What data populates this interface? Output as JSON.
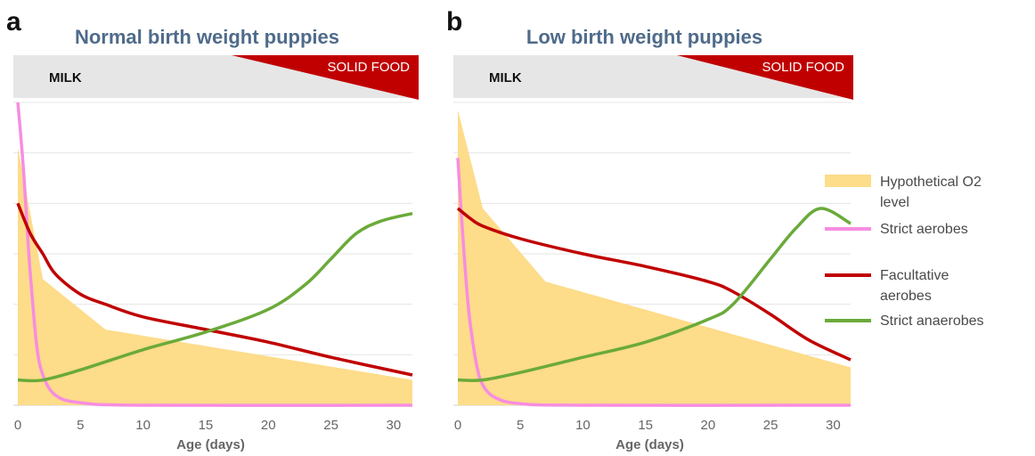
{
  "chart_data": [
    {
      "type": "line",
      "panel_label": "a",
      "title": "Normal birth weight puppies",
      "phases": [
        "MILK",
        "SOLID FOOD"
      ],
      "x_label": "Age (days)",
      "xlim": [
        0,
        31.5
      ],
      "xticks": [
        0,
        5,
        10,
        15,
        20,
        25,
        30
      ],
      "ylim": [
        0,
        6
      ],
      "yticks": [
        0,
        1,
        2,
        3,
        4,
        5,
        6
      ],
      "ytick_labels": false,
      "grid": true,
      "series": [
        {
          "name": "Hypothetical O2 level",
          "color": "#fddc8a",
          "kind": "area",
          "x": [
            0,
            2,
            7,
            31.5
          ],
          "values": [
            5.1,
            2.5,
            1.5,
            0.5
          ]
        },
        {
          "name": "Strict aerobes",
          "color": "#f78de0",
          "x": [
            0,
            0.25,
            0.5,
            0.75,
            1,
            1.5,
            2,
            3,
            5,
            10,
            31.5
          ],
          "values": [
            6.0,
            5.3,
            4.5,
            3.5,
            2.6,
            1.2,
            0.6,
            0.2,
            0.05,
            0,
            0
          ]
        },
        {
          "name": "Facultative aerobes",
          "color": "#c00000",
          "x": [
            0,
            1,
            2,
            3,
            5,
            7,
            10,
            15,
            20,
            25,
            31.5
          ],
          "values": [
            4.0,
            3.4,
            3.0,
            2.6,
            2.2,
            2.0,
            1.75,
            1.5,
            1.25,
            0.95,
            0.6
          ]
        },
        {
          "name": "Strict anaerobes",
          "color": "#6aaa3a",
          "x": [
            0,
            2,
            5,
            10,
            15,
            20,
            23,
            25,
            27,
            29,
            31.5
          ],
          "values": [
            0.5,
            0.5,
            0.7,
            1.1,
            1.45,
            1.9,
            2.4,
            2.9,
            3.4,
            3.65,
            3.8
          ]
        }
      ]
    },
    {
      "type": "line",
      "panel_label": "b",
      "title": "Low birth weight puppies",
      "phases": [
        "MILK",
        "SOLID FOOD"
      ],
      "x_label": "Age (days)",
      "xlim": [
        0,
        31.4
      ],
      "xticks": [
        0,
        5,
        10,
        15,
        20,
        25,
        30
      ],
      "ylim": [
        0,
        6
      ],
      "yticks": [
        0,
        1,
        2,
        3,
        4,
        5,
        6
      ],
      "ytick_labels": false,
      "grid": true,
      "series": [
        {
          "color": "#fddc8a",
          "kind": "area",
          "x": [
            0,
            2,
            7,
            31.4
          ],
          "values": [
            5.85,
            3.9,
            2.45,
            0.75
          ]
        },
        {
          "color": "#f78de0",
          "x": [
            0,
            0.25,
            0.5,
            0.75,
            1,
            1.5,
            2,
            3,
            5,
            10,
            31.4
          ],
          "values": [
            4.9,
            3.9,
            3.0,
            2.2,
            1.6,
            0.8,
            0.4,
            0.15,
            0.03,
            0,
            0
          ]
        },
        {
          "color": "#c00000",
          "x": [
            0,
            1,
            2,
            5,
            10,
            15,
            20,
            22,
            25,
            28,
            31.4
          ],
          "values": [
            3.9,
            3.7,
            3.55,
            3.3,
            3.0,
            2.75,
            2.45,
            2.25,
            1.8,
            1.3,
            0.9
          ]
        },
        {
          "color": "#6aaa3a",
          "x": [
            0,
            2,
            5,
            10,
            15,
            20,
            22,
            25,
            27,
            29,
            31.4
          ],
          "values": [
            0.5,
            0.5,
            0.65,
            0.95,
            1.25,
            1.7,
            2.0,
            2.9,
            3.5,
            3.9,
            3.6
          ]
        }
      ]
    }
  ]
}
